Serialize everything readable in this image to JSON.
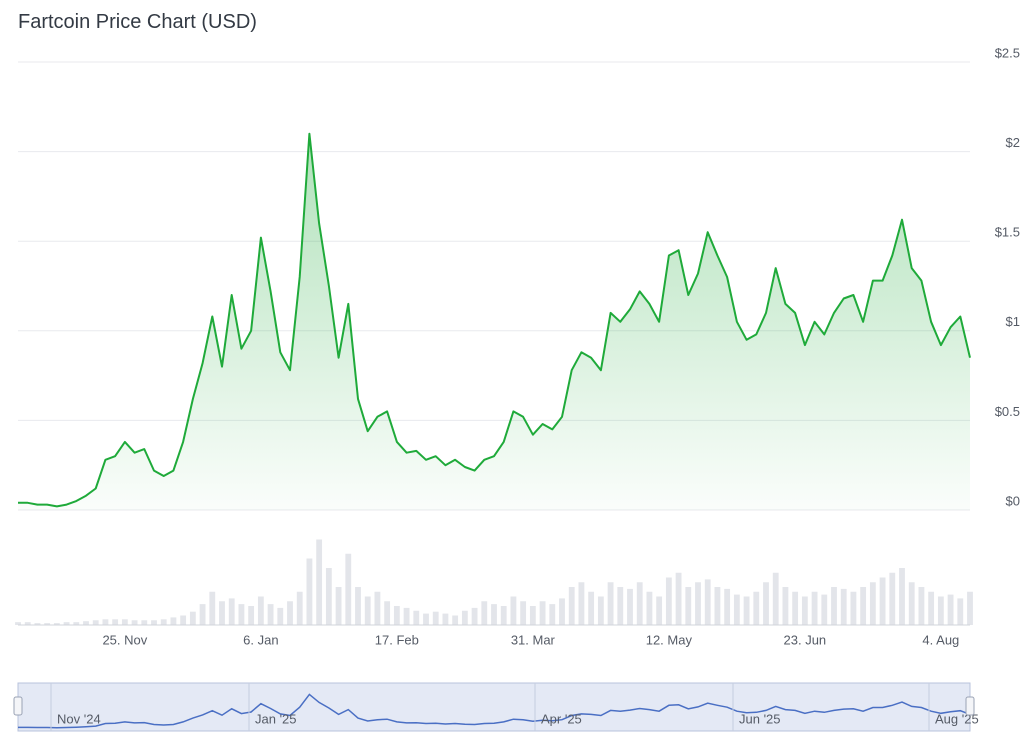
{
  "chart_data": {
    "type": "line",
    "title": "Fartcoin Price Chart (USD)",
    "categories": [
      null,
      null,
      null,
      null,
      null,
      null,
      null,
      null,
      null,
      null,
      null,
      "25. Nov",
      null,
      null,
      null,
      null,
      null,
      null,
      null,
      null,
      null,
      null,
      null,
      null,
      null,
      "6. Jan",
      null,
      null,
      null,
      null,
      null,
      null,
      null,
      null,
      null,
      null,
      null,
      null,
      null,
      "17. Feb",
      null,
      null,
      null,
      null,
      null,
      null,
      null,
      null,
      null,
      null,
      null,
      null,
      null,
      "31. Mar",
      null,
      null,
      null,
      null,
      null,
      null,
      null,
      null,
      null,
      null,
      null,
      null,
      null,
      "12. May",
      null,
      null,
      null,
      null,
      null,
      null,
      null,
      null,
      null,
      null,
      null,
      null,
      null,
      "23. Jun",
      null,
      null,
      null,
      null,
      null,
      null,
      null,
      null,
      null,
      null,
      null,
      null,
      null,
      "4. Aug",
      null,
      null,
      null
    ],
    "values": [
      0.04,
      0.04,
      0.03,
      0.03,
      0.02,
      0.03,
      0.05,
      0.08,
      0.12,
      0.28,
      0.3,
      0.38,
      0.32,
      0.34,
      0.22,
      0.19,
      0.22,
      0.38,
      0.62,
      0.82,
      1.08,
      0.8,
      1.2,
      0.9,
      1.0,
      1.52,
      1.22,
      0.88,
      0.78,
      1.3,
      2.1,
      1.6,
      1.25,
      0.85,
      1.15,
      0.62,
      0.44,
      0.52,
      0.55,
      0.38,
      0.32,
      0.33,
      0.28,
      0.3,
      0.25,
      0.28,
      0.24,
      0.22,
      0.28,
      0.3,
      0.38,
      0.55,
      0.52,
      0.42,
      0.48,
      0.45,
      0.52,
      0.78,
      0.88,
      0.85,
      0.78,
      1.1,
      1.05,
      1.12,
      1.22,
      1.15,
      1.05,
      1.42,
      1.45,
      1.2,
      1.32,
      1.55,
      1.42,
      1.3,
      1.05,
      0.95,
      0.98,
      1.1,
      1.35,
      1.15,
      1.1,
      0.92,
      1.05,
      0.98,
      1.1,
      1.18,
      1.2,
      1.05,
      1.28,
      1.28,
      1.42,
      1.62,
      1.35,
      1.28,
      1.05,
      0.92,
      1.02,
      1.08,
      0.85
    ],
    "color": "#1faa3a",
    "ylim": [
      0,
      2.5
    ],
    "yticks": [
      {
        "value": 0,
        "label": "$0"
      },
      {
        "value": 0.5,
        "label": "$0.5"
      },
      {
        "value": 1,
        "label": "$1"
      },
      {
        "value": 1.5,
        "label": "$1.5"
      },
      {
        "value": 2,
        "label": "$2"
      },
      {
        "value": 2.5,
        "label": "$2.5"
      }
    ],
    "grid": true,
    "volume": {
      "color": "#e3e5ea",
      "y2lim": [
        0,
        100
      ],
      "values": [
        3,
        3,
        2,
        2,
        2,
        3,
        3,
        4,
        5,
        6,
        6,
        6,
        5,
        5,
        5,
        6,
        8,
        10,
        14,
        22,
        35,
        25,
        28,
        22,
        20,
        30,
        22,
        18,
        25,
        35,
        70,
        90,
        60,
        40,
        75,
        40,
        30,
        35,
        25,
        20,
        18,
        15,
        12,
        14,
        12,
        10,
        15,
        18,
        25,
        22,
        20,
        30,
        25,
        20,
        25,
        22,
        28,
        40,
        45,
        35,
        30,
        45,
        40,
        38,
        45,
        35,
        30,
        50,
        55,
        40,
        45,
        48,
        40,
        38,
        32,
        30,
        35,
        45,
        55,
        40,
        35,
        30,
        35,
        32,
        40,
        38,
        35,
        40,
        45,
        50,
        55,
        60,
        45,
        40,
        35,
        30,
        32,
        28,
        35
      ]
    },
    "navigator": {
      "color": "#4a6fc4",
      "labels": [
        "Nov '24",
        "Jan '25",
        "Apr '25",
        "Jun '25",
        "Aug '25"
      ]
    }
  }
}
